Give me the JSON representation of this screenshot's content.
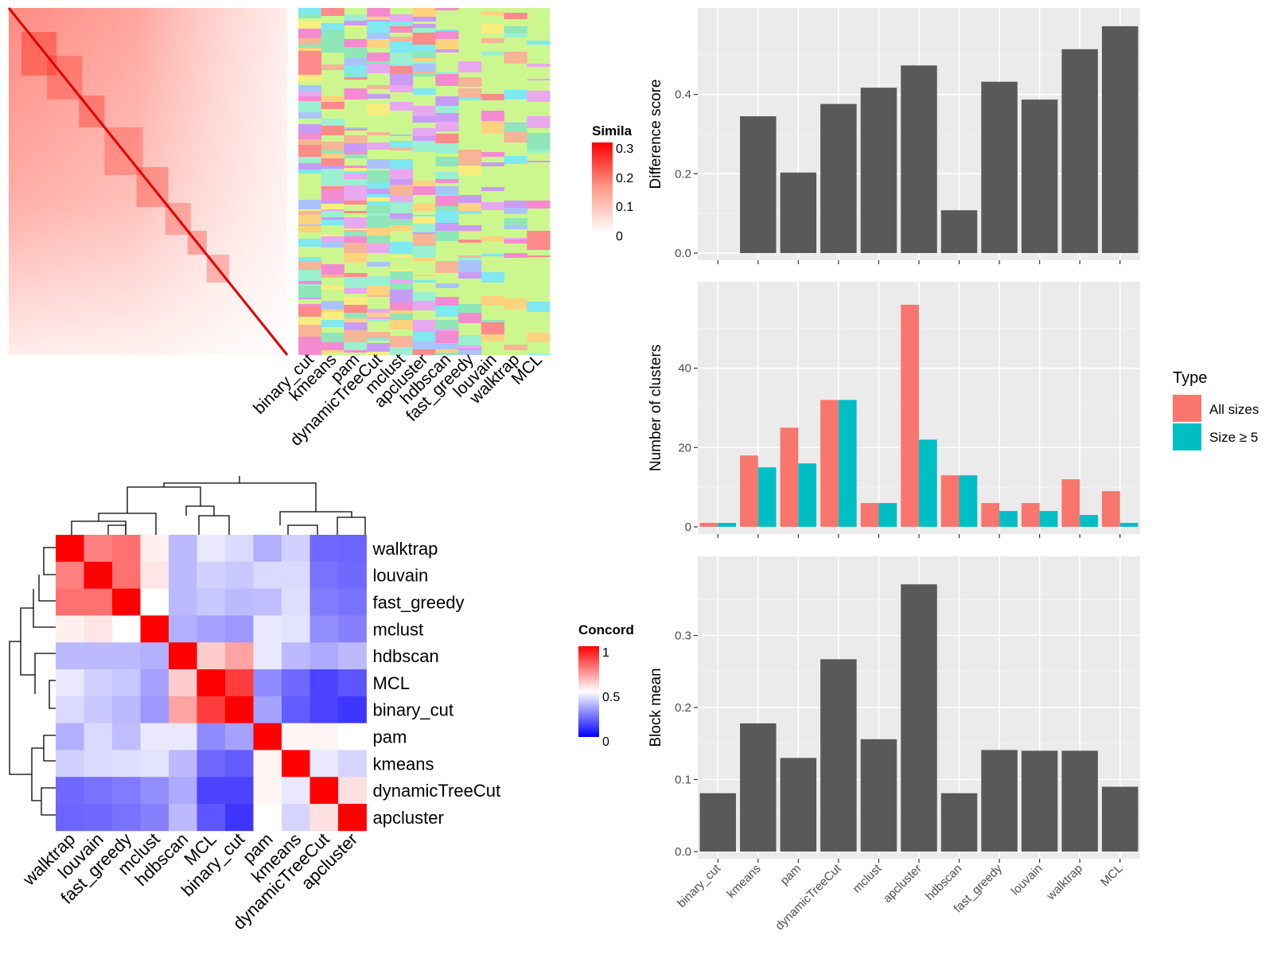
{
  "chart_data": [
    {
      "type": "heatmap",
      "panel": "similarity-matrix",
      "legend_title": "Simila",
      "legend_ticks": [
        "0.3",
        "0.2",
        "0.1",
        "0"
      ],
      "legend_colors": [
        "#ffffff",
        "#ff0000"
      ],
      "color_range": [
        0,
        0.3
      ],
      "annotation_columns": [
        "binary_cut",
        "kmeans",
        "pam",
        "dynamicTreeCut",
        "mclust",
        "apcluster",
        "hdbscan",
        "fast_greedy",
        "louvain",
        "walktrap",
        "MCL"
      ],
      "annotation_background": "#ccf78f"
    },
    {
      "type": "heatmap",
      "panel": "concordance",
      "legend_title": "Concord",
      "legend_ticks": [
        "1",
        "0.5",
        "0"
      ],
      "legend_colors": [
        "#0000ff",
        "#ffffff",
        "#ff0000"
      ],
      "rows": [
        "walktrap",
        "louvain",
        "fast_greedy",
        "mclust",
        "hdbscan",
        "MCL",
        "binary_cut",
        "pam",
        "kmeans",
        "dynamicTreeCut",
        "apcluster"
      ],
      "columns": [
        "walktrap",
        "louvain",
        "fast_greedy",
        "mclust",
        "hdbscan",
        "MCL",
        "binary_cut",
        "pam",
        "kmeans",
        "dynamicTreeCut",
        "apcluster"
      ],
      "values": [
        [
          1.0,
          0.75,
          0.78,
          0.53,
          0.35,
          0.45,
          0.42,
          0.33,
          0.4,
          0.18,
          0.17
        ],
        [
          0.75,
          1.0,
          0.78,
          0.55,
          0.35,
          0.4,
          0.38,
          0.42,
          0.42,
          0.2,
          0.18
        ],
        [
          0.78,
          0.78,
          1.0,
          0.5,
          0.35,
          0.38,
          0.35,
          0.36,
          0.43,
          0.22,
          0.2
        ],
        [
          0.53,
          0.55,
          0.5,
          1.0,
          0.33,
          0.3,
          0.28,
          0.45,
          0.44,
          0.26,
          0.23
        ],
        [
          0.35,
          0.35,
          0.35,
          0.33,
          1.0,
          0.6,
          0.68,
          0.45,
          0.35,
          0.32,
          0.35
        ],
        [
          0.45,
          0.4,
          0.38,
          0.3,
          0.6,
          1.0,
          0.88,
          0.25,
          0.18,
          0.1,
          0.14
        ],
        [
          0.42,
          0.38,
          0.35,
          0.28,
          0.68,
          0.88,
          1.0,
          0.3,
          0.15,
          0.1,
          0.07
        ],
        [
          0.33,
          0.42,
          0.36,
          0.45,
          0.45,
          0.25,
          0.3,
          1.0,
          0.52,
          0.52,
          0.5
        ],
        [
          0.4,
          0.42,
          0.43,
          0.44,
          0.35,
          0.18,
          0.15,
          0.52,
          1.0,
          0.45,
          0.41
        ],
        [
          0.18,
          0.2,
          0.22,
          0.26,
          0.32,
          0.1,
          0.1,
          0.52,
          0.45,
          1.0,
          0.56
        ],
        [
          0.17,
          0.18,
          0.2,
          0.23,
          0.35,
          0.14,
          0.07,
          0.5,
          0.41,
          0.56,
          1.0
        ]
      ]
    },
    {
      "type": "bar",
      "panel": "difference-score",
      "ylabel": "Difference score",
      "categories": [
        "binary_cut",
        "kmeans",
        "pam",
        "dynamicTreeCut",
        "mclust",
        "apcluster",
        "hdbscan",
        "fast_greedy",
        "louvain",
        "walktrap",
        "MCL"
      ],
      "values": [
        0.0,
        0.345,
        0.203,
        0.376,
        0.417,
        0.473,
        0.108,
        0.432,
        0.387,
        0.514,
        0.572
      ],
      "ylim": [
        0,
        0.6
      ],
      "yticks": [
        0.0,
        0.2,
        0.4
      ],
      "ytick_labels": [
        "0.0",
        "0.2",
        "0.4"
      ],
      "grid": true
    },
    {
      "type": "bar",
      "panel": "number-of-clusters",
      "ylabel": "Number of clusters",
      "categories": [
        "binary_cut",
        "kmeans",
        "pam",
        "dynamicTreeCut",
        "mclust",
        "apcluster",
        "hdbscan",
        "fast_greedy",
        "louvain",
        "walktrap",
        "MCL"
      ],
      "series": [
        {
          "name": "All sizes",
          "color": "#f8766d",
          "values": [
            1,
            18,
            25,
            32,
            6,
            56,
            13,
            6,
            6,
            12,
            9
          ]
        },
        {
          "name": "Size ≥ 5",
          "color": "#00bfc4",
          "values": [
            1,
            15,
            16,
            32,
            6,
            22,
            13,
            4,
            4,
            3,
            1
          ]
        }
      ],
      "ylim": [
        0,
        60
      ],
      "yticks": [
        0,
        20,
        40
      ],
      "ytick_labels": [
        "0",
        "20",
        "40"
      ],
      "legend_title": "Type",
      "legend_position": "right",
      "grid": true
    },
    {
      "type": "bar",
      "panel": "block-mean",
      "ylabel": "Block mean",
      "categories": [
        "binary_cut",
        "kmeans",
        "pam",
        "dynamicTreeCut",
        "mclust",
        "apcluster",
        "hdbscan",
        "fast_greedy",
        "louvain",
        "walktrap",
        "MCL"
      ],
      "values": [
        0.081,
        0.178,
        0.13,
        0.267,
        0.156,
        0.371,
        0.081,
        0.141,
        0.14,
        0.14,
        0.09
      ],
      "ylim": [
        0,
        0.4
      ],
      "yticks": [
        0.0,
        0.1,
        0.2,
        0.3
      ],
      "ytick_labels": [
        "0.0",
        "0.1",
        "0.2",
        "0.3"
      ],
      "grid": true
    }
  ],
  "colors": {
    "bar_fill": "#595959",
    "panel_bg": "#ebebeb",
    "gridline": "#ffffff",
    "concord_high": "#ff0000",
    "concord_mid": "#ffffff",
    "concord_low": "#0000ff",
    "similarity_high": "#ff0000",
    "annotation_bg": "#ccf78f"
  }
}
